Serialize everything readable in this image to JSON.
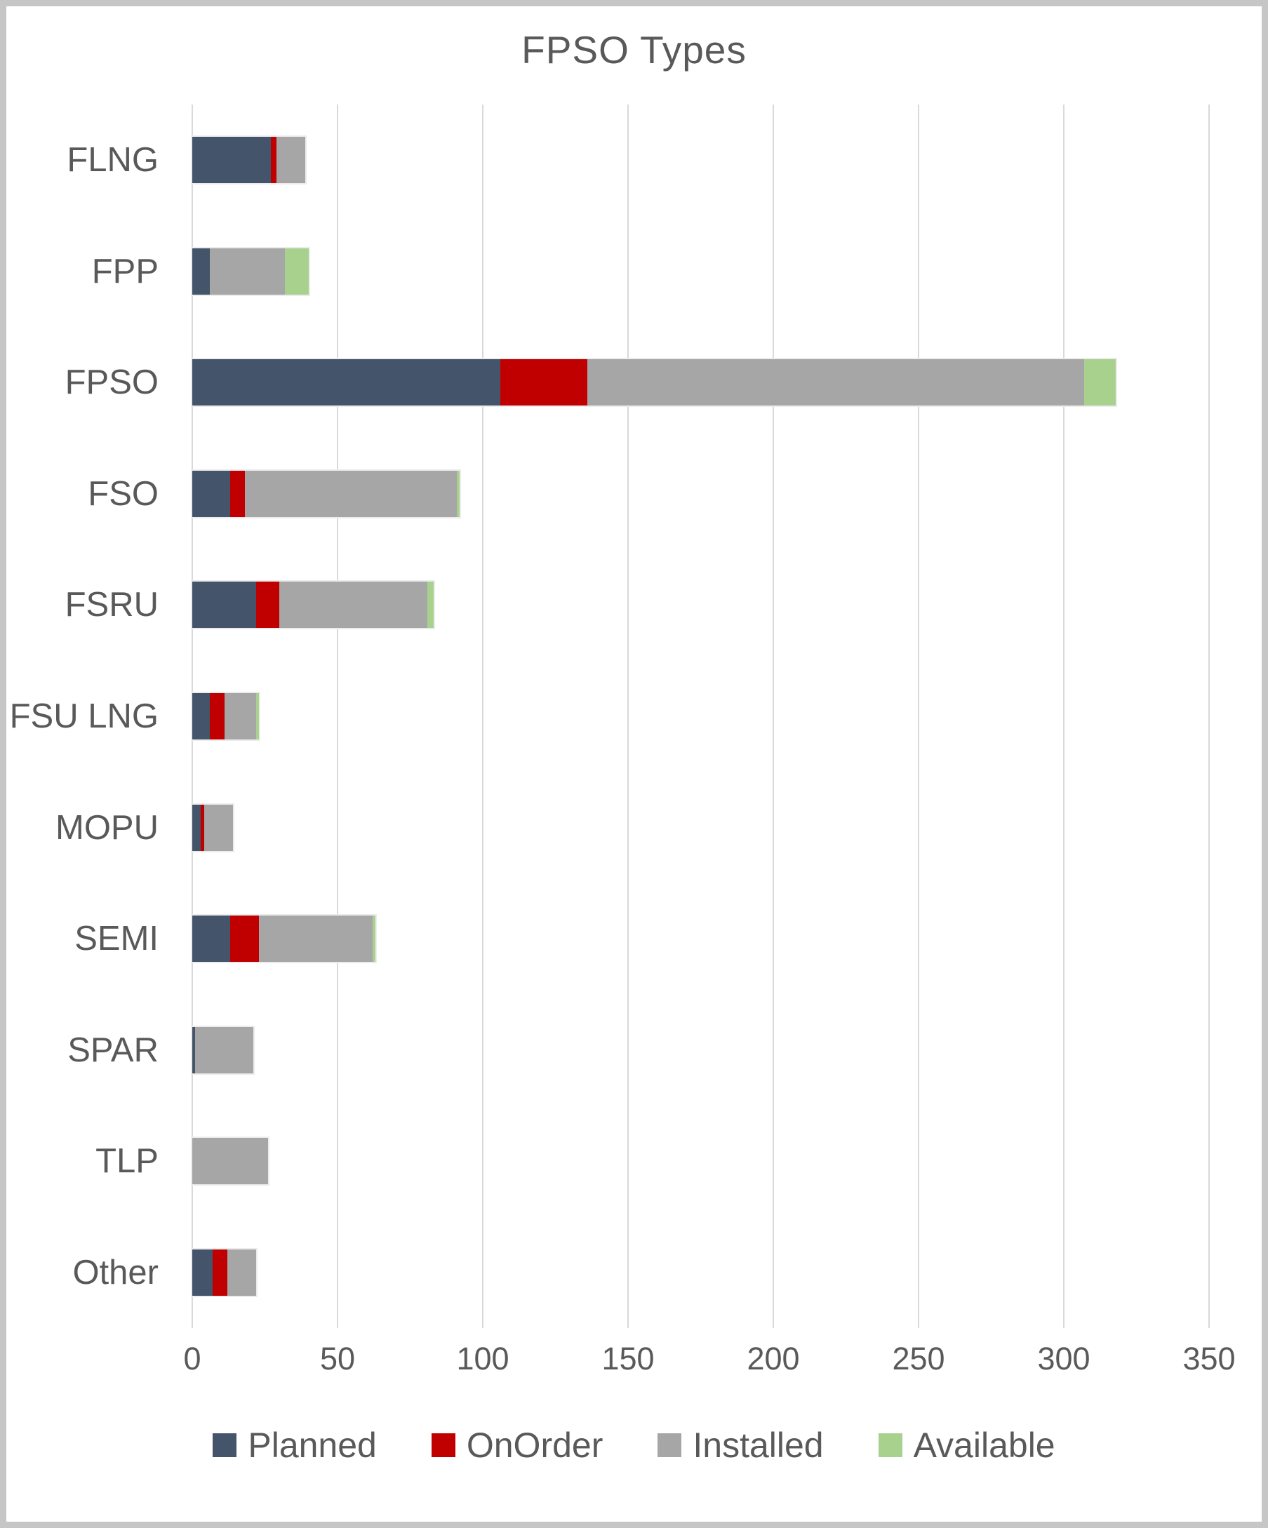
{
  "title": "FPSO Types",
  "colors": {
    "planned": "#44546A",
    "on_order": "#C00000",
    "installed": "#A6A6A6",
    "available": "#A9D18E",
    "text": "#595959",
    "gridline": "#D9D9D9",
    "frame_border": "#C6C6C6",
    "background": "#FFFFFF"
  },
  "chart_data": {
    "type": "bar",
    "orientation": "horizontal",
    "stacked": true,
    "title": "FPSO Types",
    "xlabel": "",
    "ylabel": "",
    "categories": [
      "FLNG",
      "FPP",
      "FPSO",
      "FSO",
      "FSRU",
      "FSU LNG",
      "MOPU",
      "SEMI",
      "SPAR",
      "TLP",
      "Other"
    ],
    "series": [
      {
        "name": "Planned",
        "color": "#44546A",
        "values": [
          27,
          6,
          106,
          13,
          22,
          6,
          3,
          13,
          1,
          0,
          7
        ]
      },
      {
        "name": "OnOrder",
        "color": "#C00000",
        "values": [
          2,
          0,
          30,
          5,
          8,
          5,
          1,
          10,
          0,
          0,
          5
        ]
      },
      {
        "name": "Installed",
        "color": "#A6A6A6",
        "values": [
          10,
          26,
          171,
          73,
          51,
          11,
          10,
          39,
          20,
          26,
          10
        ]
      },
      {
        "name": "Available",
        "color": "#A9D18E",
        "values": [
          0,
          8,
          11,
          1,
          2,
          1,
          0,
          1,
          0,
          0,
          0
        ]
      }
    ],
    "totals": [
      39,
      40,
      318,
      92,
      83,
      23,
      14,
      63,
      21,
      26,
      22
    ],
    "xlim": [
      0,
      350
    ],
    "x_ticks": [
      0,
      50,
      100,
      150,
      200,
      250,
      300,
      350
    ],
    "grid": "vertical",
    "legend_position": "bottom",
    "legend_entries": [
      "Planned",
      "OnOrder",
      "Installed",
      "Available"
    ]
  }
}
